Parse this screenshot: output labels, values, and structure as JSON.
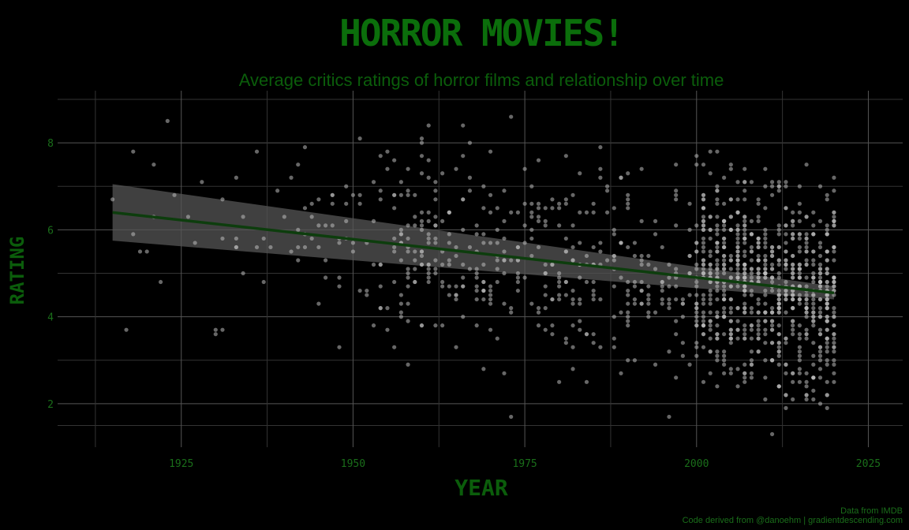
{
  "colors": {
    "background": "#000000",
    "accent": "#0b5d0b",
    "text": "#1a6e1a",
    "grid_major": "#555555",
    "grid_minor": "#333333",
    "points": "#bbbbbb",
    "ribbon": "#555555",
    "trend": "#0d3d0d"
  },
  "chart_data": {
    "type": "scatter",
    "title": "HORROR MOVIES!",
    "subtitle": "Average critics ratings of horror films and relationship over time",
    "xlabel": "YEAR",
    "ylabel": "RATING",
    "xlim": [
      1907,
      2030
    ],
    "ylim": [
      1,
      9.2
    ],
    "xticks": [
      1925,
      1950,
      1975,
      2000,
      2025
    ],
    "yticks": [
      2,
      4,
      6,
      8
    ],
    "grid": true,
    "trend": {
      "type": "linear",
      "x": [
        1915,
        2020
      ],
      "y": [
        6.4,
        4.55
      ],
      "ci_upper": [
        7.05,
        4.7
      ],
      "ci_lower": [
        5.75,
        4.4
      ]
    },
    "points": {
      "generation": "seeded-random",
      "count": 1300,
      "density_note": "denser after 2000"
    },
    "caption": [
      "Data from IMDB",
      "Code derived from @danoehm | gradientdescending.com"
    ]
  }
}
